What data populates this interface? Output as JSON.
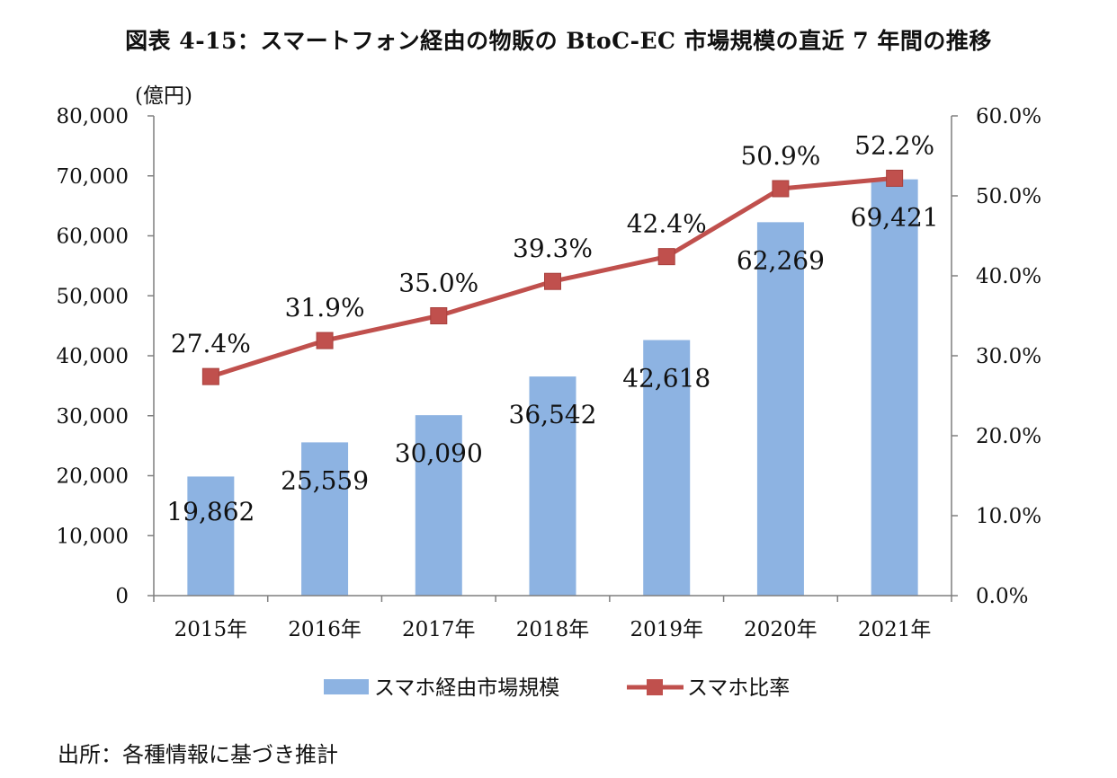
{
  "title": "図表 4-15：スマートフォン経由の物販の BtoC-EC 市場規模の直近 7 年間の推移",
  "source": "出所：各種情報に基づき推計",
  "chart_data": {
    "type": "bar+line",
    "categories": [
      "2015年",
      "2016年",
      "2017年",
      "2018年",
      "2019年",
      "2020年",
      "2021年"
    ],
    "series": [
      {
        "name": "スマホ経由市場規模",
        "type": "bar",
        "axis": "left",
        "values": [
          19862,
          25559,
          30090,
          36542,
          42618,
          62269,
          69421
        ],
        "labels": [
          "19,862",
          "25,559",
          "30,090",
          "36,542",
          "42,618",
          "62,269",
          "69,421"
        ],
        "color": "#8db3e2"
      },
      {
        "name": "スマホ比率",
        "type": "line",
        "axis": "right",
        "values": [
          27.4,
          31.9,
          35.0,
          39.3,
          42.4,
          50.9,
          52.2
        ],
        "labels": [
          "27.4%",
          "31.9%",
          "35.0%",
          "39.3%",
          "42.4%",
          "50.9%",
          "52.2%"
        ],
        "color": "#c0504d"
      }
    ],
    "y_left": {
      "unit_label": "(億円)",
      "range": [
        0,
        80000
      ],
      "ticks": [
        "0",
        "10,000",
        "20,000",
        "30,000",
        "40,000",
        "50,000",
        "60,000",
        "70,000",
        "80,000"
      ]
    },
    "y_right": {
      "range": [
        0,
        60
      ],
      "ticks": [
        "0.0%",
        "10.0%",
        "20.0%",
        "30.0%",
        "40.0%",
        "50.0%",
        "60.0%"
      ]
    },
    "grid": false,
    "legend_position": "bottom"
  }
}
